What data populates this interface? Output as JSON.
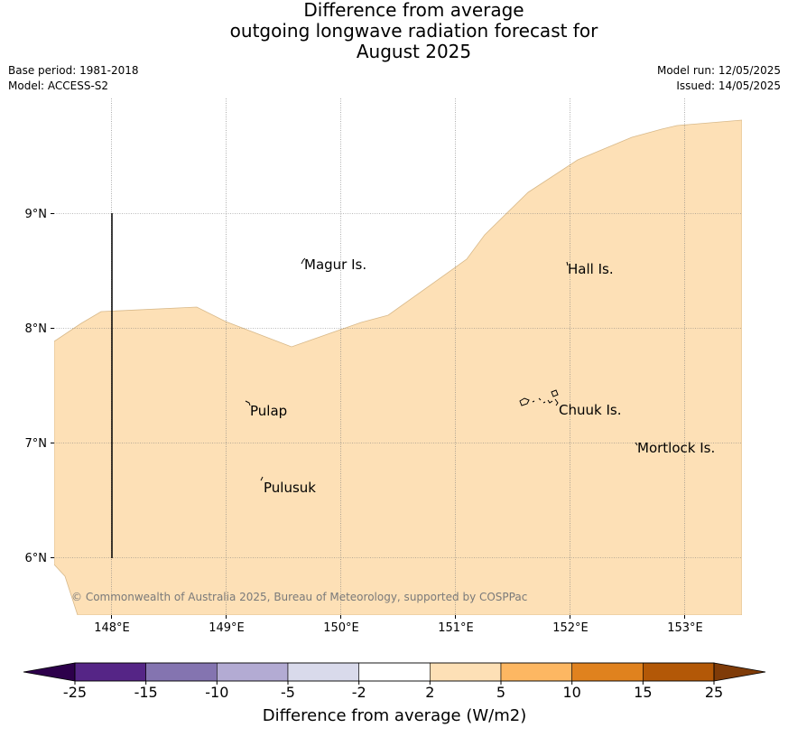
{
  "title": {
    "line1": "Difference from average",
    "line2": "outgoing longwave radiation forecast for",
    "line3": "August 2025"
  },
  "meta": {
    "base_period": "Base period: 1981-2018",
    "model": "Model: ACCESS-S2",
    "model_run": "Model run: 12/05/2025",
    "issued": "Issued: 14/05/2025"
  },
  "map": {
    "lon_labels": [
      "148°E",
      "149°E",
      "150°E",
      "151°E",
      "152°E",
      "153°E"
    ],
    "lat_labels": [
      "9°N",
      "8°N",
      "7°N",
      "6°N"
    ],
    "places": {
      "magur": "Magur Is.",
      "hall": "Hall Is.",
      "pulap": "Pulap",
      "chuuk": "Chuuk Is.",
      "mortlock": "Mortlock Is.",
      "pulusuk": "Pulusuk"
    },
    "copyright": "© Commonwealth of Australia 2025, Bureau of Meteorology, supported by COSPPac",
    "fill_color": "#fde0b6",
    "edge_color": "#d8b98a"
  },
  "colorbar": {
    "title": "Difference from average (W/m2)",
    "ticks": [
      "-25",
      "-15",
      "-10",
      "-5",
      "-2",
      "2",
      "5",
      "10",
      "15",
      "25"
    ],
    "colors": [
      "#552586",
      "#8474b0",
      "#b3abd3",
      "#d9daeb",
      "#ffffff",
      "#fde0b6",
      "#fdb762",
      "#e0821e",
      "#b35807"
    ],
    "low_extend_color": "#2d004b",
    "high_extend_color": "#7f3b08"
  }
}
